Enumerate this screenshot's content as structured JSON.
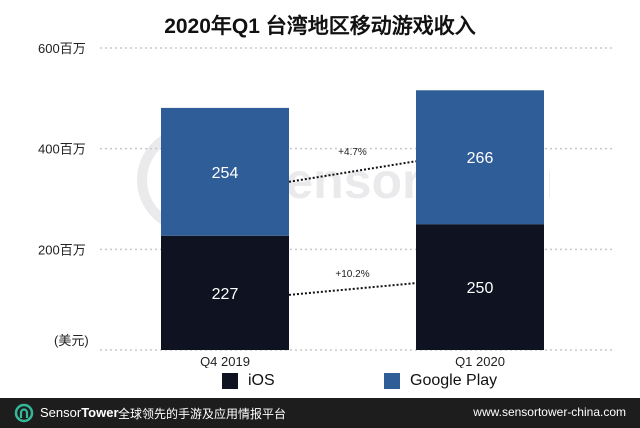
{
  "title": "2020年Q1 台湾地区移动游戏收入",
  "unit_label": "(美元)",
  "colors": {
    "ios": "#0f1220",
    "google_play": "#2f5d98",
    "watermark": "#7f8590",
    "footer_bg": "#1d1d1d",
    "accent": "#35b89a"
  },
  "chart_data": {
    "type": "bar",
    "stacked": true,
    "title": "2020年Q1 台湾地区移动游戏收入",
    "categories": [
      "Q4  2019",
      "Q1 2020"
    ],
    "series": [
      {
        "name": "iOS",
        "values": [
          227,
          250
        ],
        "color": "#0f1220"
      },
      {
        "name": "Google Play",
        "values": [
          254,
          266
        ],
        "color": "#2f5d98"
      }
    ],
    "ylim": [
      0,
      600
    ],
    "yticks": [
      {
        "value": 600,
        "label": "600百万"
      },
      {
        "value": 400,
        "label": "400百万"
      },
      {
        "value": 200,
        "label": "200百万"
      }
    ],
    "grid": true,
    "legend": "bottom",
    "growth_annotations": [
      {
        "series": "Google Play",
        "label": "+4.7%"
      },
      {
        "series": "iOS",
        "label": "+10.2%"
      }
    ]
  },
  "legend": {
    "items": [
      {
        "label": "iOS"
      },
      {
        "label": "Google Play"
      }
    ]
  },
  "footer": {
    "brand_part1": "Sensor",
    "brand_part2": "Tower",
    "tagline": "全球领先的手游及应用情报平台",
    "url": "www.sensortower-china.com"
  },
  "watermark": {
    "text": "SensorTower",
    "icon": "sensortower-logo-icon"
  }
}
